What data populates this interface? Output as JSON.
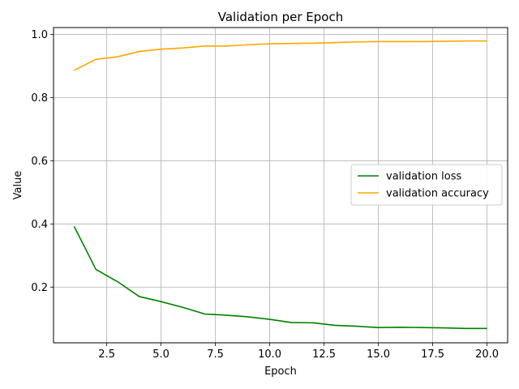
{
  "chart_data": {
    "type": "line",
    "title": "Validation per Epoch",
    "xlabel": "Epoch",
    "ylabel": "Value",
    "xlim": [
      0.05,
      20.95
    ],
    "ylim": [
      0.0237,
      1.0215
    ],
    "xticks": [
      2.5,
      5.0,
      7.5,
      10.0,
      12.5,
      15.0,
      17.5,
      20.0
    ],
    "xtick_labels": [
      "2.5",
      "5.0",
      "7.5",
      "10.0",
      "12.5",
      "15.0",
      "17.5",
      "20.0"
    ],
    "yticks": [
      0.2,
      0.4,
      0.6,
      0.8,
      1.0
    ],
    "ytick_labels": [
      "0.2",
      "0.4",
      "0.6",
      "0.8",
      "1.0"
    ],
    "grid": true,
    "legend_position": "center-right",
    "x": [
      1,
      2,
      3,
      4,
      5,
      6,
      7,
      8,
      9,
      10,
      11,
      12,
      13,
      14,
      15,
      16,
      17,
      18,
      19,
      20
    ],
    "series": [
      {
        "name": "validation loss",
        "color": "#008000",
        "values": [
          0.392,
          0.256,
          0.217,
          0.17,
          0.154,
          0.136,
          0.115,
          0.111,
          0.106,
          0.098,
          0.088,
          0.087,
          0.079,
          0.076,
          0.072,
          0.073,
          0.072,
          0.071,
          0.069,
          0.069
        ]
      },
      {
        "name": "validation accuracy",
        "color": "#ffa500",
        "values": [
          0.886,
          0.921,
          0.929,
          0.946,
          0.953,
          0.957,
          0.963,
          0.963,
          0.967,
          0.97,
          0.971,
          0.972,
          0.974,
          0.976,
          0.977,
          0.977,
          0.977,
          0.978,
          0.979,
          0.979
        ]
      }
    ]
  }
}
